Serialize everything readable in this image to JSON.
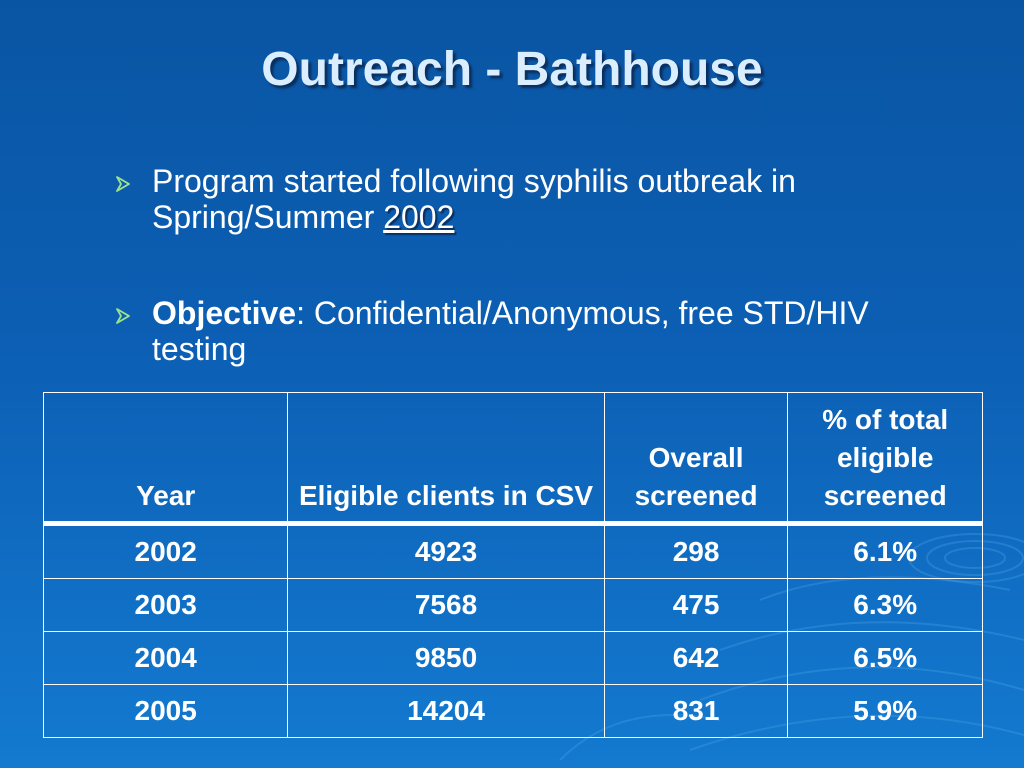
{
  "slide": {
    "title": "Outreach - Bathhouse",
    "bullets": [
      {
        "text_before": "Program started following syphilis outbreak in Spring/Summer ",
        "link_text": "2002"
      },
      {
        "label": "Objective",
        "text_after": ":  Confidential/Anonymous, free STD/HIV testing"
      }
    ]
  },
  "table": {
    "headers": [
      "Year",
      "Eligible clients in CSV",
      "Overall screened",
      "% of total eligible screened"
    ],
    "rows": [
      [
        "2002",
        "4923",
        "298",
        "6.1%"
      ],
      [
        "2003",
        "7568",
        "475",
        "6.3%"
      ],
      [
        "2004",
        "9850",
        "642",
        "6.5%"
      ],
      [
        "2005",
        "14204",
        "831",
        "5.9%"
      ]
    ]
  },
  "colors": {
    "background_top": "#0a55a3",
    "background_bottom": "#137ad0",
    "title_text": "#dbeeff",
    "bullet_marker": "#9be28c",
    "text": "#ffffff"
  },
  "icons": {
    "bullet": "arrowhead-bullet-icon",
    "background": "water-ripple-decoration"
  }
}
